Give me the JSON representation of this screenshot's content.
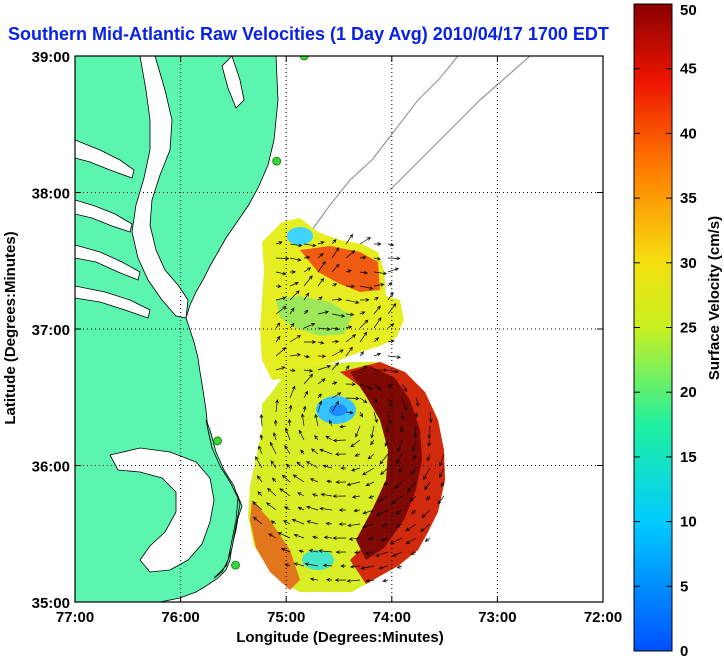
{
  "chart_data": {
    "type": "heatmap",
    "title": "Southern Mid-Atlantic Raw Velocities (1 Day Avg) 2010/04/17 1700 EDT",
    "xlabel": "Longitude (Degrees:Minutes)",
    "ylabel": "Latitude (Degrees:Minutes)",
    "x_range": [
      -77,
      -72
    ],
    "y_range": [
      35,
      39
    ],
    "x_ticks": [
      {
        "value": -77,
        "label": "77:00"
      },
      {
        "value": -76,
        "label": "76:00"
      },
      {
        "value": -75,
        "label": "75:00"
      },
      {
        "value": -74,
        "label": "74:00"
      },
      {
        "value": -73,
        "label": "73:00"
      },
      {
        "value": -72,
        "label": "72:00"
      }
    ],
    "y_ticks": [
      {
        "value": 35,
        "label": "35:00"
      },
      {
        "value": 36,
        "label": "36:00"
      },
      {
        "value": 37,
        "label": "37:00"
      },
      {
        "value": 38,
        "label": "38:00"
      },
      {
        "value": 39,
        "label": "39:00"
      }
    ],
    "grid": true,
    "colorbar": {
      "label": "Surface Velocity (cm/s)",
      "min": 0,
      "max": 50,
      "ticks": [
        0,
        5,
        10,
        15,
        20,
        25,
        30,
        35,
        40,
        45,
        50
      ],
      "colormap": "jet"
    },
    "features": {
      "land_color": "#5cf5b0",
      "water_color": "#ffffff",
      "bathymetry_color": "#999999",
      "station_color": "#39d639",
      "stations": [
        {
          "lon": -74.83,
          "lat": 39.0
        },
        {
          "lon": -75.09,
          "lat": 38.23
        },
        {
          "lon": -75.65,
          "lat": 36.18
        },
        {
          "lon": -75.48,
          "lat": 35.27
        }
      ]
    }
  }
}
